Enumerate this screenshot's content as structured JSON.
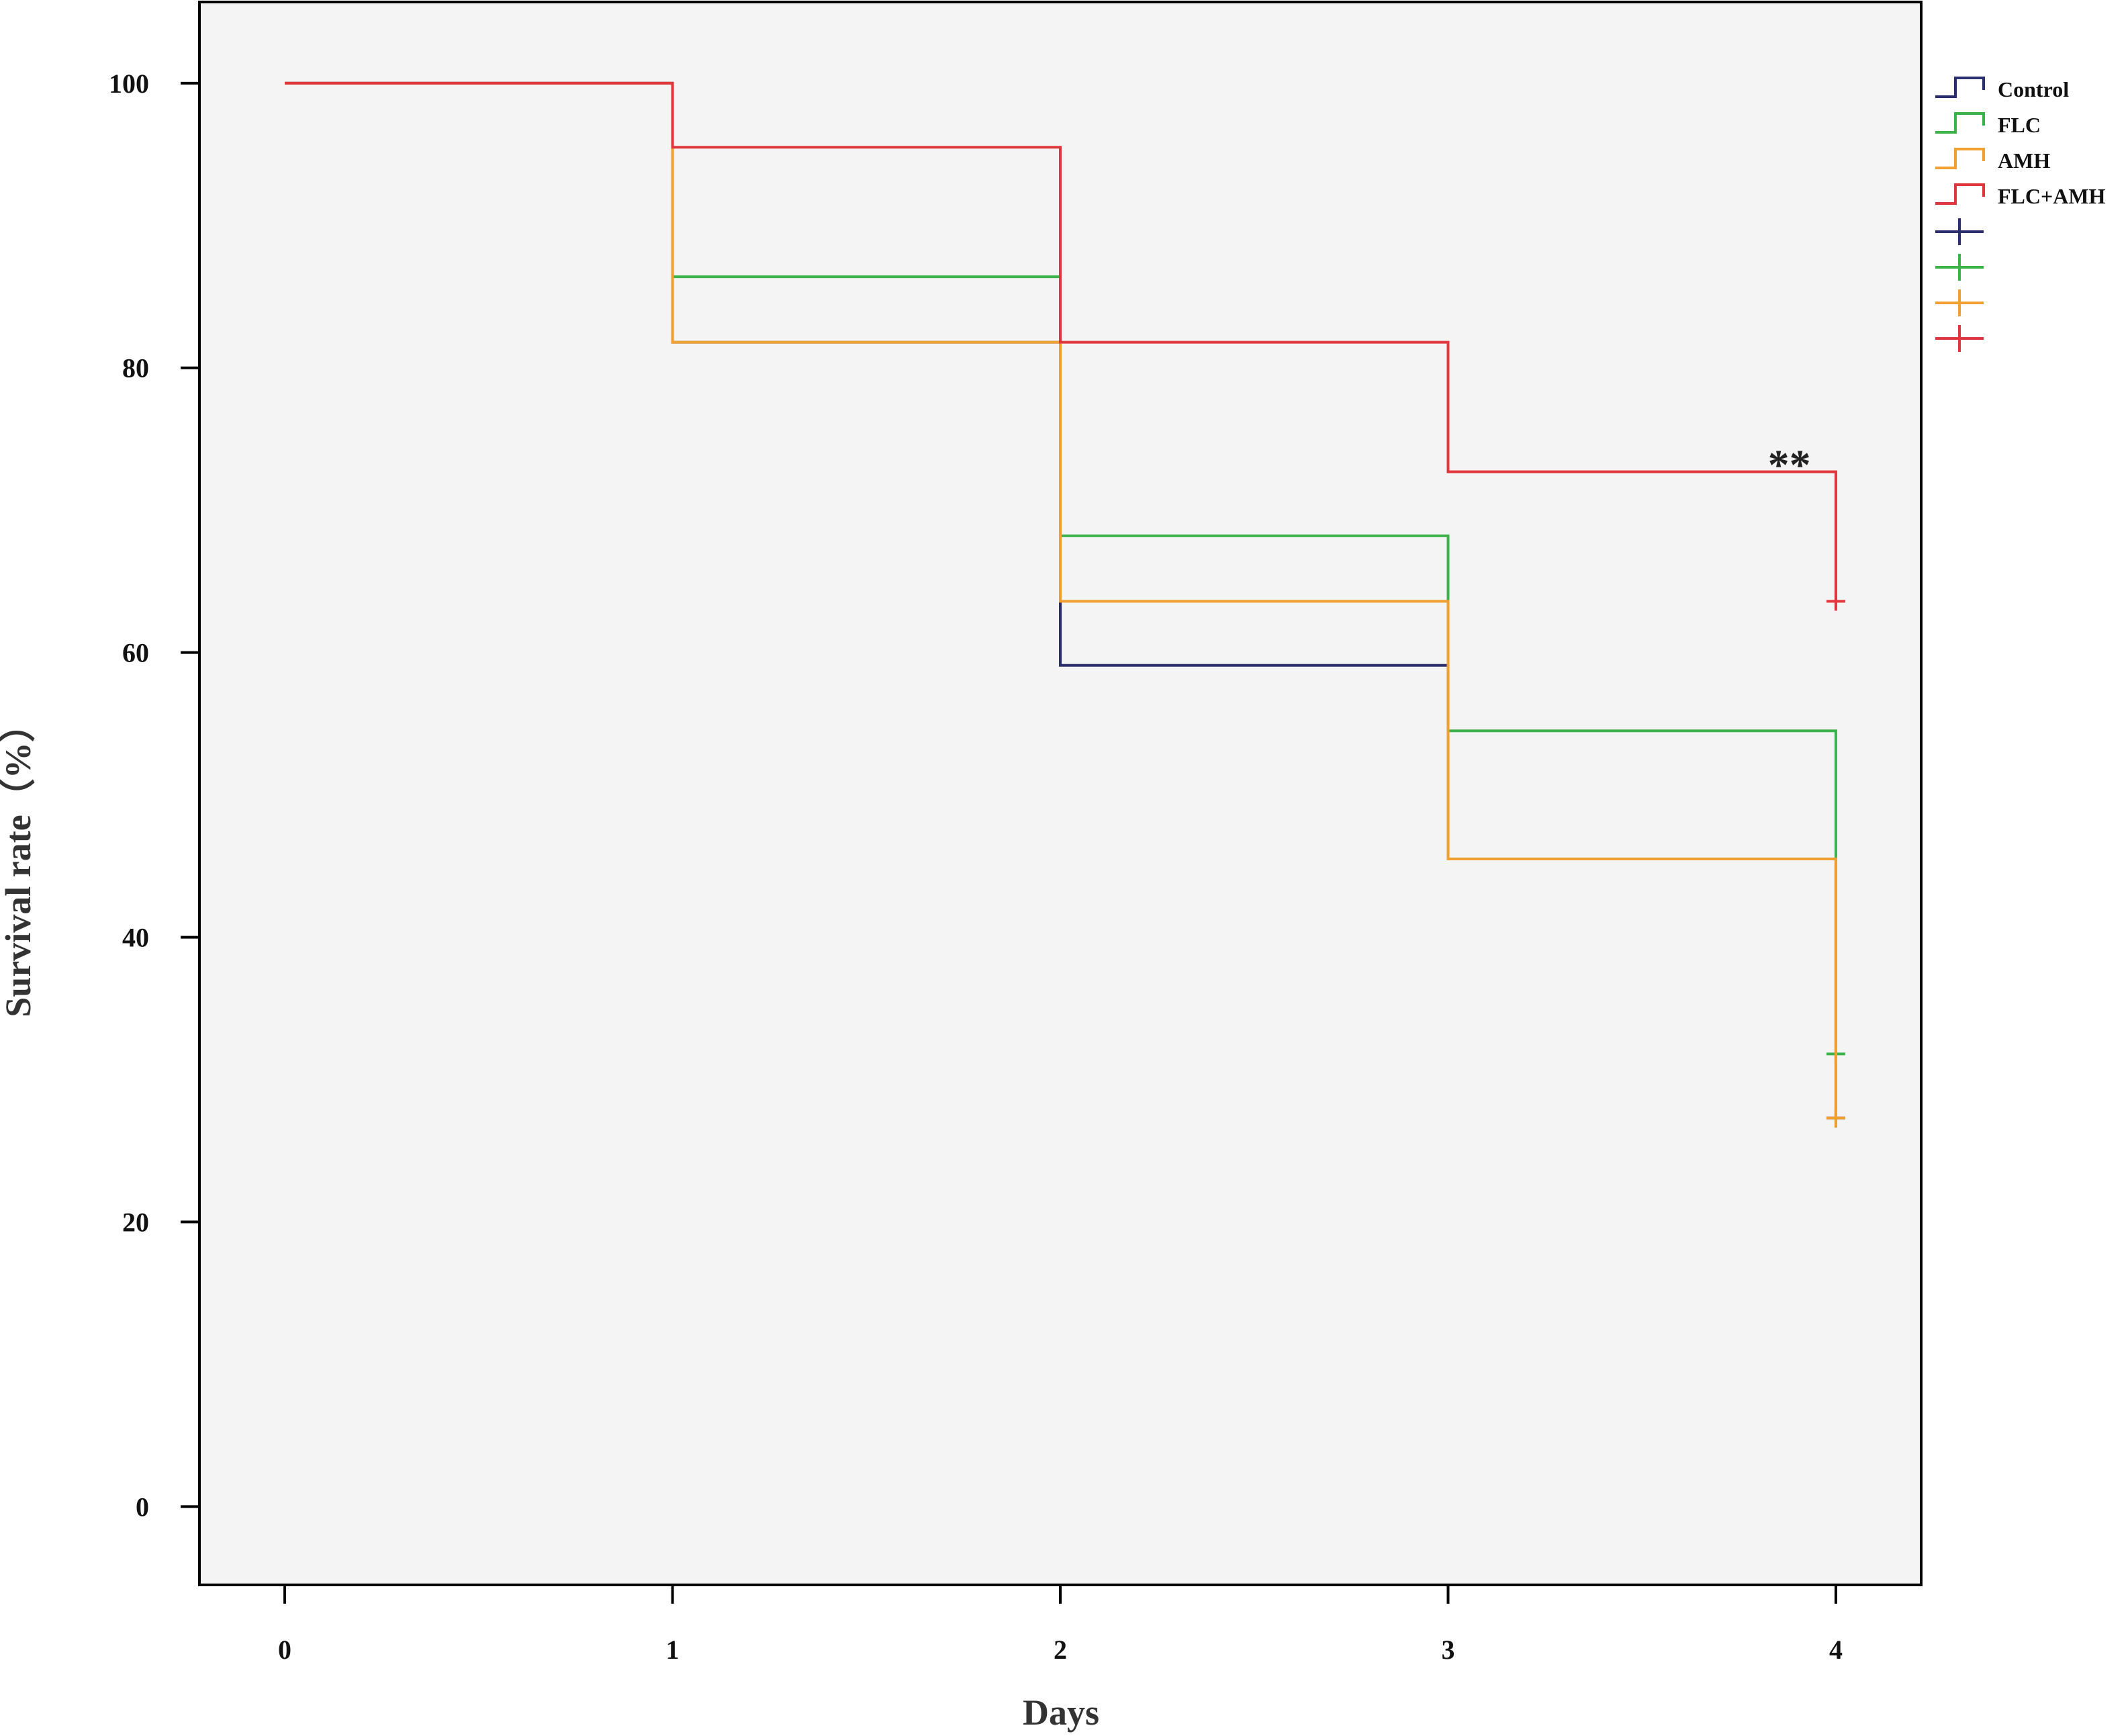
{
  "chart_data": {
    "type": "line",
    "step": true,
    "xlabel": "Days",
    "ylabel": "Survival rate（%）",
    "xlim": [
      -0.22,
      4.22
    ],
    "ylim": [
      -5.5,
      105.7
    ],
    "xticks": [
      0,
      1,
      2,
      3,
      4
    ],
    "yticks": [
      0,
      20,
      40,
      60,
      80,
      100
    ],
    "grid": false,
    "background": "#f4f4f4",
    "legend_position": "right",
    "series": [
      {
        "name": "Control",
        "color": "#2b2e6e",
        "x": [
          0,
          1,
          2,
          3,
          4
        ],
        "y": [
          100,
          81.8,
          59.1,
          45.5,
          27.3
        ],
        "censor": {
          "x": 4,
          "y": 27.3
        }
      },
      {
        "name": "FLC",
        "color": "#3cb34a",
        "x": [
          0,
          1,
          2,
          3,
          4
        ],
        "y": [
          100,
          86.4,
          68.2,
          54.5,
          31.8
        ],
        "censor": {
          "x": 4,
          "y": 31.8
        }
      },
      {
        "name": "AMH",
        "color": "#f0a030",
        "x": [
          0,
          1,
          2,
          3,
          4
        ],
        "y": [
          100,
          81.8,
          63.6,
          45.5,
          27.3
        ],
        "censor": {
          "x": 4,
          "y": 27.3
        }
      },
      {
        "name": "FLC+AMH",
        "color": "#e0363d",
        "x": [
          0,
          1,
          2,
          3,
          4
        ],
        "y": [
          100,
          95.5,
          81.8,
          72.7,
          63.6
        ],
        "censor": {
          "x": 4,
          "y": 63.6
        }
      }
    ],
    "annotations": [
      {
        "text": "**",
        "x": 3.88,
        "y": 73.5
      }
    ]
  }
}
